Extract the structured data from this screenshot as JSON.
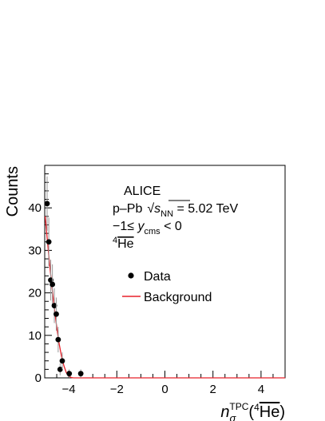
{
  "chart_data": {
    "type": "scatter",
    "xlim": [
      -5.0,
      5.0
    ],
    "ylim": [
      0,
      50
    ],
    "x_ticks": [
      "−4",
      "−2",
      "0",
      "2",
      "4"
    ],
    "x_tick_values": [
      -4,
      -2,
      0,
      2,
      4
    ],
    "y_ticks": [
      "0",
      "10",
      "20",
      "30",
      "40"
    ],
    "y_tick_values": [
      0,
      10,
      20,
      30,
      40
    ],
    "ylabel": "Counts",
    "xlabel": {
      "main": "n",
      "sub": "σ",
      "sup": "TPC",
      "paren_open": "(",
      "mass": "4",
      "nucleus": "He",
      "paren_close": ")"
    },
    "annotations": {
      "experiment": "ALICE",
      "system_prefix": "p–Pb",
      "sqrt": "√",
      "s": "s",
      "s_sub": "NN",
      "energy": " = 5.02 TeV",
      "rapidity_prefix": "−1≤ ",
      "y": "y",
      "y_sub": "cms",
      "rapidity_suffix": " < 0",
      "species_mass": "4",
      "species_name": "He"
    },
    "legend": {
      "position": "center",
      "entries": [
        "Data",
        "Background"
      ]
    },
    "series": [
      {
        "name": "Data",
        "marker": "filled-circle",
        "color": "#000000",
        "points": [
          {
            "x": -4.9,
            "y": 41,
            "err": 6.4
          },
          {
            "x": -4.83,
            "y": 32,
            "err": 5.7
          },
          {
            "x": -4.75,
            "y": 23,
            "err": 4.8
          },
          {
            "x": -4.68,
            "y": 22,
            "err": 4.7
          },
          {
            "x": -4.6,
            "y": 17,
            "err": 4.1
          },
          {
            "x": -4.52,
            "y": 15,
            "err": 3.9
          },
          {
            "x": -4.44,
            "y": 9,
            "err": 3.0
          },
          {
            "x": -4.36,
            "y": 2,
            "err": 1.4
          },
          {
            "x": -4.27,
            "y": 4,
            "err": 2.0
          },
          {
            "x": -3.98,
            "y": 1,
            "err": 1.0
          },
          {
            "x": -3.5,
            "y": 1,
            "err": 1.0
          }
        ]
      },
      {
        "name": "Background",
        "type": "line",
        "color": "#e8202a",
        "x": [
          -4.98,
          -4.9,
          -4.8,
          -4.7,
          -4.6,
          -4.5,
          -4.4,
          -4.3,
          -4.2,
          -4.1,
          -4.0,
          -3.9,
          -3.8,
          5.0
        ],
        "y": [
          38,
          33,
          27,
          21.5,
          16.5,
          12,
          8,
          5,
          2.8,
          1.2,
          0.4,
          0.1,
          0,
          0
        ]
      }
    ]
  }
}
